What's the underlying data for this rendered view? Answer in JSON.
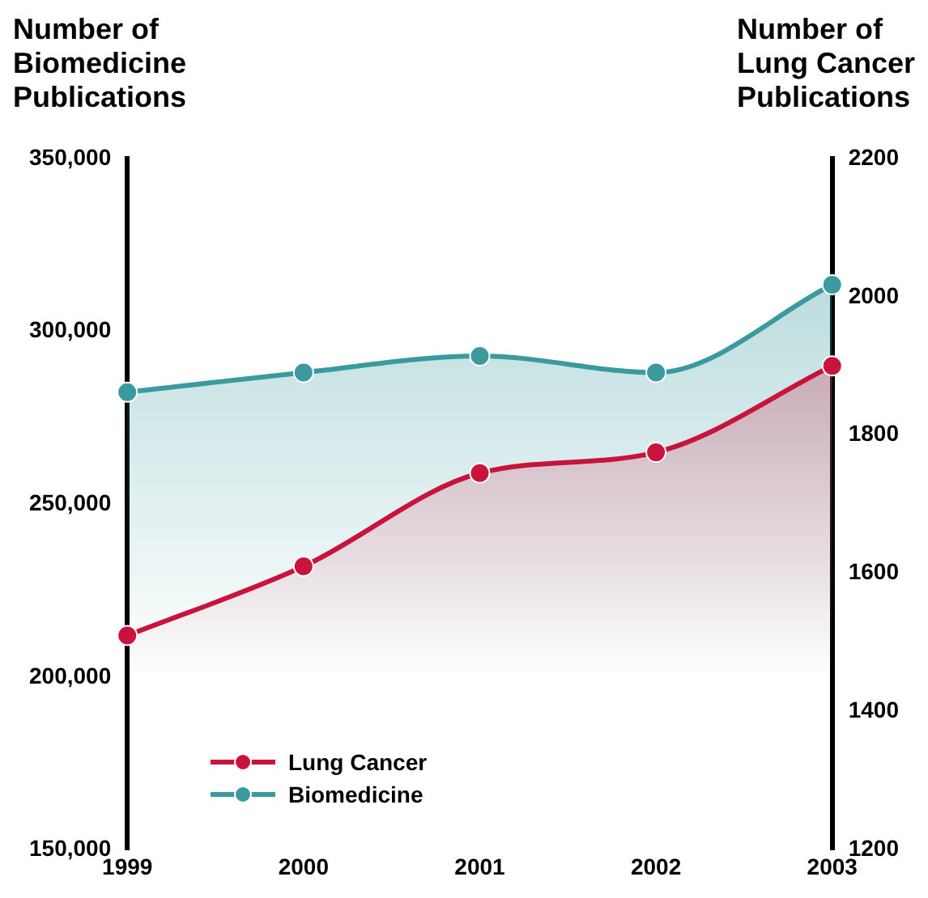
{
  "chart_data": {
    "type": "area",
    "ylabel": "Number of Biomedicine Publications",
    "y2label": "Number of Lung Cancer Publications",
    "categories": [
      "1999",
      "2000",
      "2001",
      "2002",
      "2003"
    ],
    "series": [
      {
        "name": "Lung Cancer",
        "color": "#c8143c",
        "axis": "y2",
        "values": [
          1510,
          1610,
          1745,
          1775,
          1900
        ]
      },
      {
        "name": "Biomedicine",
        "color": "#3a9a9e",
        "values": [
          282400,
          288100,
          292900,
          288100,
          313500
        ]
      }
    ],
    "ylim": [
      150000,
      350000
    ],
    "yticks": [
      {
        "value": 150000,
        "label": "150,000"
      },
      {
        "value": 200000,
        "label": "200,000"
      },
      {
        "value": 250000,
        "label": "250,000"
      },
      {
        "value": 300000,
        "label": "300,000"
      },
      {
        "value": 350000,
        "label": "350,000"
      }
    ],
    "y2lim": [
      1200,
      2200
    ],
    "y2ticks": [
      1200,
      1400,
      1600,
      1800,
      2000,
      2200
    ],
    "grid": false,
    "legend": "bottom left",
    "marker": "circle",
    "line_style": "solid"
  }
}
